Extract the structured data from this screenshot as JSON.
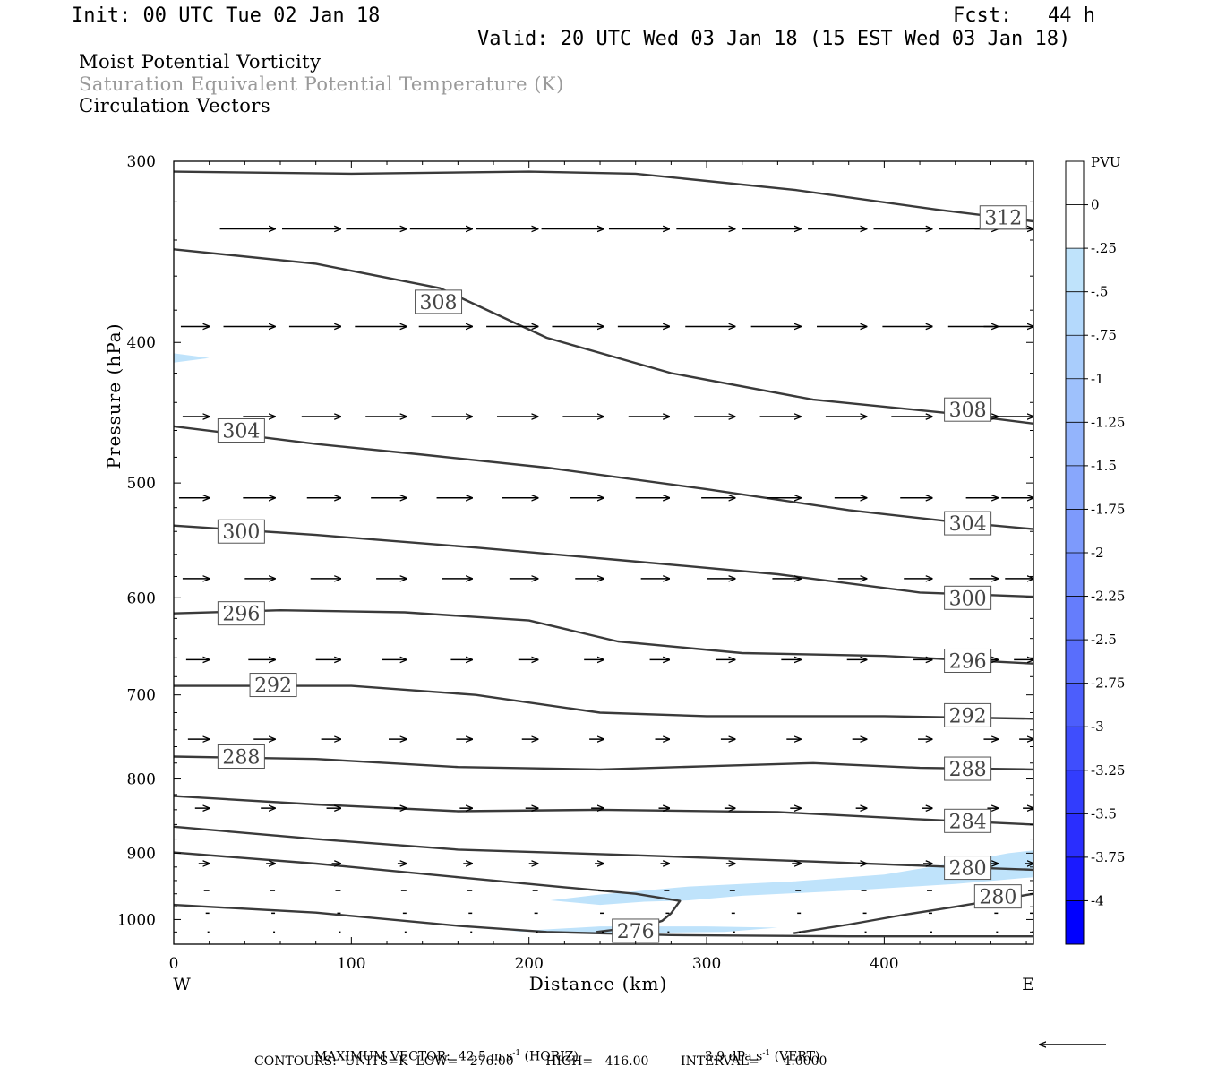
{
  "header": {
    "init": "Init: 00 UTC Tue 02 Jan 18",
    "fcst": "Fcst:   44 h",
    "valid": "Valid: 20 UTC Wed 03 Jan 18 (15 EST Wed 03 Jan 18)"
  },
  "titles": {
    "line1": "Moist Potential Vorticity",
    "line2": "Saturation Equivalent Potential Temperature (K)",
    "line3": "Circulation Vectors"
  },
  "colors": {
    "title2": "#9a9a9a",
    "contour": "#3a3a3a",
    "pv_scale": [
      "#ffffff",
      "#ffffff",
      "#bfe3fb",
      "#b4d9fc",
      "#a9cdfc",
      "#9ec1fc",
      "#93b4fc",
      "#88a7fc",
      "#7d9afc",
      "#718cfc",
      "#657dfc",
      "#596efc",
      "#4c5efc",
      "#3f4efd",
      "#323dfd",
      "#2a2efe",
      "#1a1aff",
      "#0000ff"
    ]
  },
  "chart_data": {
    "type": "cross-section",
    "xlabel": "Distance (km)",
    "ylabel": "Pressure (hPa)",
    "xlim": [
      0,
      484
    ],
    "ylim": [
      1040,
      300
    ],
    "y_log": true,
    "x_ticks": [
      0,
      100,
      200,
      300,
      400
    ],
    "x_tick_labels": [
      "0",
      "100",
      "200",
      "300",
      "400"
    ],
    "y_ticks": [
      300,
      400,
      500,
      600,
      700,
      800,
      900,
      1000
    ],
    "y_tick_labels": [
      "300",
      "400",
      "500",
      "600",
      "700",
      "800",
      "900",
      "1000"
    ],
    "side_labels": {
      "left": "W",
      "right": "E"
    },
    "theta_es_contours": [
      {
        "value": 312,
        "label": "312",
        "label_at": [
          467,
          328
        ],
        "points": [
          [
            0,
            305
          ],
          [
            100,
            306
          ],
          [
            200,
            305
          ],
          [
            260,
            306
          ],
          [
            350,
            314
          ],
          [
            430,
            324
          ],
          [
            484,
            330
          ]
        ]
      },
      {
        "value": 308,
        "label": "308",
        "label_at": [
          149,
          375
        ],
        "points": [
          [
            0,
            345
          ],
          [
            80,
            353
          ],
          [
            150,
            367
          ],
          [
            210,
            397
          ],
          [
            280,
            420
          ],
          [
            360,
            438
          ],
          [
            440,
            448
          ],
          [
            484,
            455
          ]
        ]
      },
      {
        "value": 308,
        "label": "308",
        "label_at": [
          447,
          445
        ],
        "points": []
      },
      {
        "value": 304,
        "label": "304",
        "label_at": [
          38,
          460
        ],
        "points": [
          [
            0,
            457
          ],
          [
            80,
            470
          ],
          [
            140,
            478
          ],
          [
            210,
            488
          ],
          [
            300,
            505
          ],
          [
            380,
            522
          ],
          [
            440,
            532
          ],
          [
            484,
            538
          ]
        ]
      },
      {
        "value": 304,
        "label": "304",
        "label_at": [
          447,
          533
        ],
        "points": []
      },
      {
        "value": 300,
        "label": "300",
        "label_at": [
          38,
          540
        ],
        "points": [
          [
            0,
            535
          ],
          [
            80,
            543
          ],
          [
            170,
            554
          ],
          [
            250,
            565
          ],
          [
            340,
            578
          ],
          [
            420,
            595
          ],
          [
            484,
            599
          ]
        ]
      },
      {
        "value": 300,
        "label": "300",
        "label_at": [
          447,
          600
        ],
        "points": []
      },
      {
        "value": 296,
        "label": "296",
        "label_at": [
          38,
          615
        ],
        "points": [
          [
            0,
            615
          ],
          [
            60,
            612
          ],
          [
            130,
            614
          ],
          [
            200,
            622
          ],
          [
            250,
            643
          ],
          [
            320,
            655
          ],
          [
            400,
            658
          ],
          [
            484,
            666
          ]
        ]
      },
      {
        "value": 296,
        "label": "296",
        "label_at": [
          447,
          663
        ],
        "points": []
      },
      {
        "value": 292,
        "label": "292",
        "label_at": [
          56,
          689
        ],
        "points": [
          [
            0,
            690
          ],
          [
            100,
            690
          ],
          [
            170,
            700
          ],
          [
            240,
            720
          ],
          [
            300,
            724
          ],
          [
            400,
            724
          ],
          [
            484,
            727
          ]
        ]
      },
      {
        "value": 292,
        "label": "292",
        "label_at": [
          447,
          723
        ],
        "points": []
      },
      {
        "value": 288,
        "label": "288",
        "label_at": [
          38,
          772
        ],
        "points": [
          [
            0,
            772
          ],
          [
            80,
            775
          ],
          [
            160,
            785
          ],
          [
            240,
            788
          ],
          [
            300,
            784
          ],
          [
            360,
            780
          ],
          [
            420,
            786
          ],
          [
            484,
            788
          ]
        ]
      },
      {
        "value": 288,
        "label": "288",
        "label_at": [
          447,
          787
        ],
        "points": []
      },
      {
        "value": 284,
        "label": "284",
        "label_at": [
          447,
          855
        ],
        "points": [
          [
            0,
            822
          ],
          [
            80,
            833
          ],
          [
            160,
            842
          ],
          [
            240,
            840
          ],
          [
            340,
            843
          ],
          [
            420,
            853
          ],
          [
            484,
            860
          ]
        ]
      },
      {
        "value": 280,
        "label": "280",
        "label_at": [
          447,
          921
        ],
        "points": [
          [
            0,
            863
          ],
          [
            80,
            880
          ],
          [
            160,
            895
          ],
          [
            260,
            903
          ],
          [
            360,
            912
          ],
          [
            440,
            920
          ],
          [
            484,
            924
          ]
        ]
      },
      {
        "value": 280,
        "label": "280",
        "label_at": [
          464,
          964
        ],
        "points": [
          [
            349,
            1022
          ],
          [
            380,
            1008
          ],
          [
            410,
            993
          ],
          [
            440,
            980
          ],
          [
            484,
            960
          ]
        ]
      },
      {
        "value": 276,
        "label": "276",
        "label_at": [
          260,
          1018
        ],
        "points": [
          [
            0,
            899
          ],
          [
            80,
            915
          ],
          [
            160,
            935
          ],
          [
            220,
            950
          ],
          [
            260,
            960
          ],
          [
            285,
            971
          ],
          [
            280,
            990
          ],
          [
            275,
            1002
          ],
          [
            266,
            1010
          ],
          [
            238,
            1020
          ]
        ]
      },
      {
        "value": 276,
        "label": "",
        "label_at": null,
        "points": [
          [
            0,
            977
          ],
          [
            80,
            989
          ],
          [
            160,
            1010
          ],
          [
            210,
            1020
          ],
          [
            280,
            1025
          ],
          [
            380,
            1027
          ],
          [
            484,
            1027
          ]
        ]
      }
    ],
    "mpv_shading": [
      {
        "range": "-0.25 to -0.5",
        "points": [
          [
            212,
            970
          ],
          [
            240,
            961
          ],
          [
            290,
            949
          ],
          [
            350,
            941
          ],
          [
            400,
            931
          ],
          [
            440,
            914
          ],
          [
            470,
            900
          ],
          [
            484,
            896
          ],
          [
            484,
            935
          ],
          [
            440,
            945
          ],
          [
            380,
            955
          ],
          [
            320,
            963
          ],
          [
            290,
            970
          ],
          [
            265,
            972
          ],
          [
            240,
            977
          ]
        ]
      },
      {
        "range": "-0.25 to -0.5",
        "points": [
          [
            0,
            407
          ],
          [
            20,
            410
          ],
          [
            0,
            413
          ]
        ]
      },
      {
        "range": "-0.25 to -0.5",
        "points": [
          [
            190,
            1019
          ],
          [
            240,
            1011
          ],
          [
            300,
            1011
          ],
          [
            340,
            1013
          ],
          [
            310,
            1020
          ],
          [
            240,
            1022
          ]
        ]
      }
    ],
    "vector_rows": [
      {
        "pressure": 334,
        "lengths_km": [
          23,
          31,
          33,
          34,
          35,
          35,
          35,
          34,
          33,
          33,
          33,
          33,
          33,
          33
        ]
      },
      {
        "pressure": 390,
        "lengths_km": [
          16,
          29,
          29,
          29,
          30,
          29,
          29,
          29,
          28,
          28,
          28,
          28,
          28,
          28
        ]
      },
      {
        "pressure": 450,
        "lengths_km": [
          15,
          18,
          22,
          23,
          23,
          23,
          23,
          23,
          23,
          23,
          23,
          23,
          23,
          23
        ]
      },
      {
        "pressure": 512,
        "lengths_km": [
          17,
          18,
          19,
          20,
          20,
          20,
          19,
          19,
          19,
          19,
          18,
          18,
          18,
          18
        ]
      },
      {
        "pressure": 582,
        "lengths_km": [
          15,
          17,
          17,
          17,
          17,
          16,
          16,
          16,
          16,
          16,
          16,
          16,
          16,
          16
        ]
      },
      {
        "pressure": 662,
        "lengths_km": [
          13,
          15,
          14,
          14,
          12,
          11,
          11,
          11,
          11,
          11,
          11,
          11,
          11,
          11
        ]
      },
      {
        "pressure": 751,
        "lengths_km": [
          12,
          12,
          11,
          10,
          9,
          9,
          8,
          8,
          8,
          8,
          8,
          8,
          8,
          8
        ]
      },
      {
        "pressure": 838,
        "lengths_km": [
          8,
          8,
          8,
          7,
          7,
          7,
          7,
          6,
          6,
          6,
          6,
          6,
          6,
          6
        ]
      },
      {
        "pressure": 915,
        "lengths_km": [
          6,
          5,
          5,
          5,
          5,
          5,
          5,
          5,
          5,
          5,
          5,
          5,
          5,
          5
        ]
      },
      {
        "pressure": 955,
        "lengths_km": [
          3,
          3,
          3,
          3,
          3,
          3,
          3,
          3,
          3,
          3,
          3,
          3,
          3,
          3
        ]
      },
      {
        "pressure": 990,
        "lengths_km": [
          2,
          2,
          2,
          2,
          2,
          2,
          2,
          2,
          2,
          2,
          2,
          2,
          2,
          2
        ]
      },
      {
        "pressure": 1020,
        "lengths_km": [
          1,
          1,
          1,
          1,
          1,
          1,
          1,
          1,
          1,
          1,
          1,
          1,
          1,
          1
        ]
      }
    ],
    "vector_x_km": [
      20,
      57,
      94,
      131,
      168,
      205,
      242,
      279,
      316,
      353,
      390,
      427,
      464,
      484
    ]
  },
  "colorbar": {
    "title": "PVU",
    "labels": [
      "0",
      "-.25",
      "-.5",
      "-.75",
      "-1",
      "-1.25",
      "-1.5",
      "-1.75",
      "-2",
      "-2.25",
      "-2.5",
      "-2.75",
      "-3",
      "-3.25",
      "-3.5",
      "-3.75",
      "-4"
    ]
  },
  "footer": {
    "max_vector": "MAXIMUM VECTOR:  42.5 m s",
    "max_vector_exp1": "-1",
    "max_vector_horiz": " (HORIZ)",
    "max_vector_vert": "3.9 dPa s",
    "max_vector_exp2": "-1",
    "max_vector_vert_tail": " (VERT)",
    "contours": "CONTOURS:  UNITS=K  LOW=   276.00        HIGH=   416.00        INTERVAL=      4.0000"
  }
}
